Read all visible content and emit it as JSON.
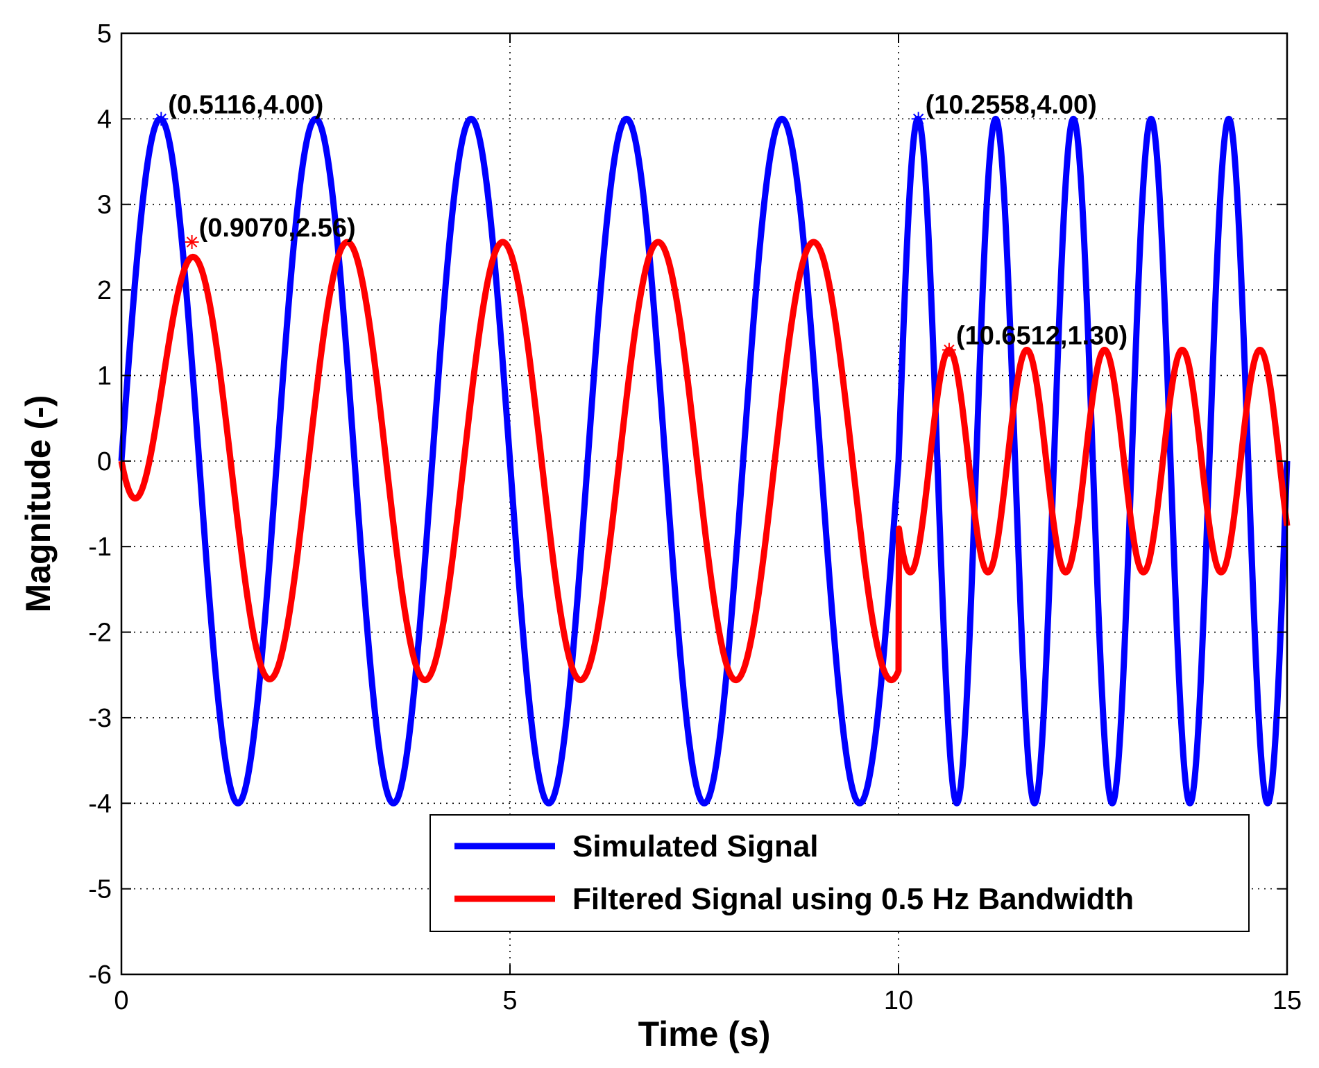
{
  "chart_data": {
    "type": "line",
    "title": "",
    "xlabel": "Time (s)",
    "ylabel": "Magnitude (-)",
    "xlim": [
      0,
      15
    ],
    "ylim": [
      -6,
      5
    ],
    "xticks": [
      0,
      5,
      10,
      15
    ],
    "xtick_labels": [
      "0",
      "5",
      "10",
      "15"
    ],
    "yticks": [
      -6,
      -5,
      -4,
      -3,
      -2,
      -1,
      0,
      1,
      2,
      3,
      4,
      5
    ],
    "ytick_labels": [
      "-6",
      "-5",
      "-4",
      "-3",
      "-2",
      "-1",
      "0",
      "1",
      "2",
      "3",
      "4",
      "5"
    ],
    "grid": true,
    "legend_position": "bottom-right",
    "series": [
      {
        "name": "Simulated Signal",
        "color": "#0000ff",
        "description": "sine amplitude 4.00, 0.5 Hz for 0–10 s, 1 Hz for 10–15 s",
        "segments": [
          {
            "t_start": 0,
            "t_end": 10,
            "amplitude": 4.0,
            "frequency_hz": 0.5
          },
          {
            "t_start": 10,
            "t_end": 15,
            "amplitude": 4.0,
            "frequency_hz": 1.0
          }
        ]
      },
      {
        "name": "Filtered Signal using 0.5 Hz Bandwidth",
        "color": "#ff0000",
        "segments": [
          {
            "t_start": 0,
            "t_end": 10,
            "amplitude": 2.56,
            "frequency_hz": 0.5,
            "peak_time": 0.907
          },
          {
            "t_start": 10,
            "t_end": 15,
            "amplitude": 1.3,
            "frequency_hz": 1.0,
            "peak_time": 10.6512
          }
        ]
      }
    ],
    "annotations": [
      {
        "text": "(0.5116,4.00)",
        "x": 0.5116,
        "y": 4.0,
        "series": "Simulated Signal",
        "marker_color": "#0000ff"
      },
      {
        "text": "(0.9070,2.56)",
        "x": 0.907,
        "y": 2.56,
        "series": "Filtered Signal using 0.5 Hz Bandwidth",
        "marker_color": "#ff0000"
      },
      {
        "text": "(10.2558,4.00)",
        "x": 10.2558,
        "y": 4.0,
        "series": "Simulated Signal",
        "marker_color": "#0000ff"
      },
      {
        "text": "(10.6512,1.30)",
        "x": 10.6512,
        "y": 1.3,
        "series": "Filtered Signal using 0.5 Hz Bandwidth",
        "marker_color": "#ff0000"
      }
    ]
  }
}
